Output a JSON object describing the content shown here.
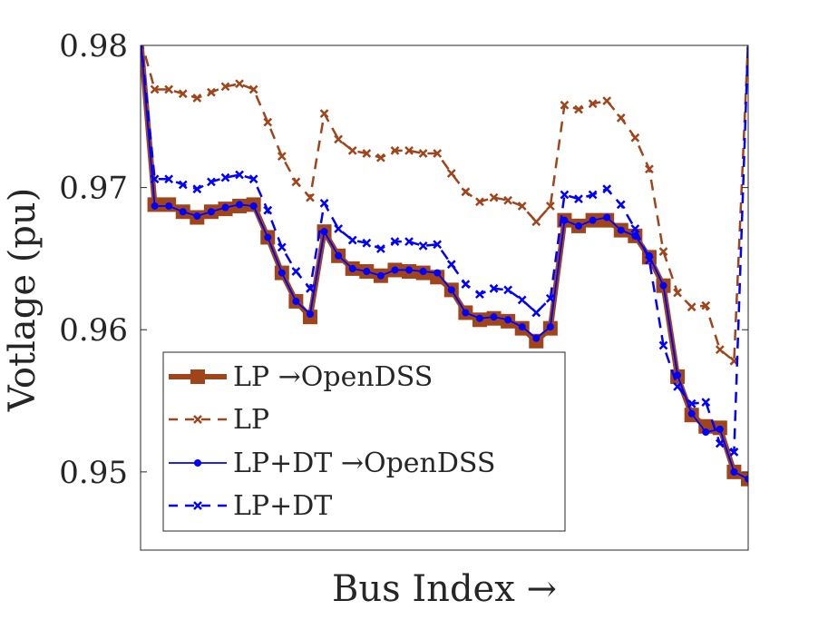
{
  "chart_data": {
    "type": "line",
    "title": "",
    "xlabel": "Bus Index →",
    "ylabel": "Votlage (pu)",
    "xlim": [
      1,
      44
    ],
    "ylim": [
      0.9445,
      0.98
    ],
    "yticks": [
      0.95,
      0.96,
      0.97,
      0.98
    ],
    "ytick_labels": [
      "0.95",
      "0.96",
      "0.97",
      "0.98"
    ],
    "grid": false,
    "legend_position": "bottom-left",
    "colors": {
      "lp": "#a0441a",
      "dt": "#0000ff",
      "axis": "#262626"
    },
    "series": [
      {
        "name": "LP →OpenDSS",
        "style": "solid-thick",
        "marker": "square",
        "color": "#a0441a",
        "x": [
          1,
          2,
          3,
          4,
          5,
          6,
          7,
          8,
          9,
          10,
          11,
          12,
          13,
          14,
          15,
          16,
          17,
          18,
          19,
          20,
          21,
          22,
          23,
          24,
          25,
          26,
          27,
          28,
          29,
          30,
          31,
          32,
          33,
          34,
          35,
          36,
          37,
          38,
          39,
          40,
          41,
          42,
          43,
          44
        ],
        "values": [
          0.9805,
          0.9688,
          0.9688,
          0.9683,
          0.9679,
          0.9683,
          0.9685,
          0.9687,
          0.9688,
          0.9665,
          0.964,
          0.962,
          0.9609,
          0.9669,
          0.9652,
          0.9643,
          0.9641,
          0.9638,
          0.9642,
          0.9641,
          0.964,
          0.9637,
          0.9628,
          0.9612,
          0.9607,
          0.9608,
          0.9606,
          0.9601,
          0.9592,
          0.9601,
          0.9677,
          0.9673,
          0.9677,
          0.9677,
          0.967,
          0.9666,
          0.9651,
          0.9631,
          0.9567,
          0.954,
          0.9532,
          0.9531,
          0.95,
          0.9495
        ]
      },
      {
        "name": "LP",
        "style": "dashed",
        "marker": "x",
        "color": "#a0441a",
        "x": [
          1,
          2,
          3,
          4,
          5,
          6,
          7,
          8,
          9,
          10,
          11,
          12,
          13,
          14,
          15,
          16,
          17,
          18,
          19,
          20,
          21,
          22,
          23,
          24,
          25,
          26,
          27,
          28,
          29,
          30,
          31,
          32,
          33,
          34,
          35,
          36,
          37,
          38,
          39,
          40,
          41,
          42,
          43,
          44
        ],
        "values": [
          0.9805,
          0.9769,
          0.9769,
          0.9766,
          0.9763,
          0.9767,
          0.9771,
          0.9773,
          0.9769,
          0.9746,
          0.9722,
          0.9704,
          0.9693,
          0.9752,
          0.9734,
          0.9726,
          0.9724,
          0.9721,
          0.9726,
          0.9726,
          0.9724,
          0.9724,
          0.971,
          0.9697,
          0.969,
          0.9693,
          0.9691,
          0.9687,
          0.9676,
          0.9687,
          0.9758,
          0.9755,
          0.9759,
          0.9761,
          0.9749,
          0.9735,
          0.9713,
          0.9655,
          0.9626,
          0.9616,
          0.9617,
          0.9586,
          0.9578,
          0.9805
        ]
      },
      {
        "name": "LP+DT →OpenDSS",
        "style": "solid",
        "marker": "dot",
        "color": "#0000ff",
        "x": [
          1,
          2,
          3,
          4,
          5,
          6,
          7,
          8,
          9,
          10,
          11,
          12,
          13,
          14,
          15,
          16,
          17,
          18,
          19,
          20,
          21,
          22,
          23,
          24,
          25,
          26,
          27,
          28,
          29,
          30,
          31,
          32,
          33,
          34,
          35,
          36,
          37,
          38,
          39,
          40,
          41,
          42,
          43,
          44
        ],
        "values": [
          0.9805,
          0.9687,
          0.9687,
          0.9683,
          0.968,
          0.9683,
          0.9686,
          0.9688,
          0.9687,
          0.9665,
          0.964,
          0.962,
          0.9611,
          0.9669,
          0.9652,
          0.9643,
          0.9641,
          0.9638,
          0.9642,
          0.9642,
          0.9641,
          0.964,
          0.9628,
          0.9612,
          0.9608,
          0.9609,
          0.9607,
          0.9602,
          0.9594,
          0.9602,
          0.9677,
          0.9673,
          0.9677,
          0.9679,
          0.967,
          0.9666,
          0.9652,
          0.9631,
          0.9568,
          0.9541,
          0.9528,
          0.953,
          0.95,
          0.9495
        ]
      },
      {
        "name": "LP+DT",
        "style": "dashed",
        "marker": "x",
        "color": "#0000ff",
        "x": [
          1,
          2,
          3,
          4,
          5,
          6,
          7,
          8,
          9,
          10,
          11,
          12,
          13,
          14,
          15,
          16,
          17,
          18,
          19,
          20,
          21,
          22,
          23,
          24,
          25,
          26,
          27,
          28,
          29,
          30,
          31,
          32,
          33,
          34,
          35,
          36,
          37,
          38,
          39,
          40,
          41,
          42,
          43,
          44
        ],
        "values": [
          0.9805,
          0.9706,
          0.9706,
          0.9702,
          0.9699,
          0.9704,
          0.9707,
          0.9709,
          0.9706,
          0.9684,
          0.9658,
          0.9641,
          0.9629,
          0.9689,
          0.9671,
          0.9663,
          0.9661,
          0.9657,
          0.9662,
          0.9662,
          0.9659,
          0.966,
          0.9646,
          0.9632,
          0.9625,
          0.9629,
          0.9628,
          0.9621,
          0.9612,
          0.9622,
          0.9695,
          0.9692,
          0.9695,
          0.9699,
          0.9688,
          0.9671,
          0.9649,
          0.9589,
          0.956,
          0.9548,
          0.9549,
          0.952,
          0.9514,
          0.9805
        ]
      }
    ]
  }
}
